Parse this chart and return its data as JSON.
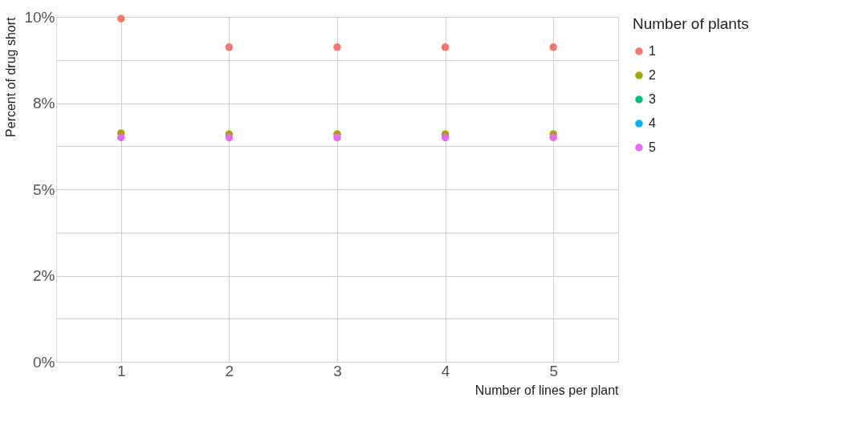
{
  "chart_data": {
    "type": "scatter",
    "xlabel": "Number of lines per plant",
    "ylabel": "Percent of drug short",
    "legend_title": "Number of plants",
    "x": [
      1,
      2,
      3,
      4,
      5
    ],
    "series": [
      {
        "name": "1",
        "color": "#f8766d",
        "values": [
          9.95,
          9.12,
          9.12,
          9.12,
          9.12
        ]
      },
      {
        "name": "2",
        "color": "#a3a500",
        "values": [
          6.63,
          6.6,
          6.6,
          6.6,
          6.6
        ]
      },
      {
        "name": "3",
        "color": "#00bf7d",
        "values": [
          null,
          null,
          null,
          null,
          null
        ]
      },
      {
        "name": "4",
        "color": "#00b0f6",
        "values": [
          null,
          null,
          null,
          null,
          null
        ]
      },
      {
        "name": "5",
        "color": "#e76bf3",
        "values": [
          6.5,
          6.5,
          6.5,
          6.5,
          6.5
        ]
      }
    ],
    "xlim": [
      0.4,
      5.6
    ],
    "xticks": [
      1,
      2,
      3,
      4,
      5
    ],
    "ylim": [
      0,
      10
    ],
    "yticks": [
      {
        "value": 0,
        "label": "0%"
      },
      {
        "value": 1.25,
        "label": null
      },
      {
        "value": 2.5,
        "label": "2%"
      },
      {
        "value": 3.75,
        "label": null
      },
      {
        "value": 5,
        "label": "5%"
      },
      {
        "value": 6.25,
        "label": null
      },
      {
        "value": 7.5,
        "label": "8%"
      },
      {
        "value": 8.75,
        "label": null
      },
      {
        "value": 10,
        "label": "10%"
      }
    ],
    "grid": true,
    "legend": "right",
    "marker": "circle"
  }
}
